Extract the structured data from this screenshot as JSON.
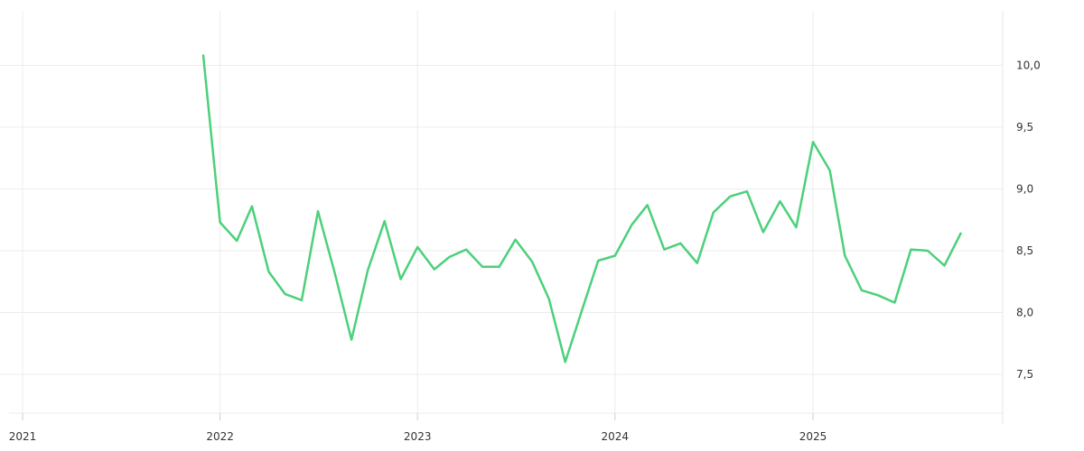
{
  "chart_data": {
    "type": "line",
    "title": "",
    "xlabel": "",
    "ylabel": "",
    "grid": true,
    "legend": "none",
    "xlim": [
      "2021-01-01",
      "2025-12-31"
    ],
    "ylim": [
      7.2,
      10.4
    ],
    "x_ticks": [
      {
        "date": "2021-01-01",
        "label": "2021"
      },
      {
        "date": "2022-01-01",
        "label": "2022"
      },
      {
        "date": "2023-01-01",
        "label": "2023"
      },
      {
        "date": "2024-01-01",
        "label": "2024"
      },
      {
        "date": "2025-01-01",
        "label": "2025"
      }
    ],
    "y_ticks": [
      {
        "value": 7.5,
        "label": "7,5"
      },
      {
        "value": 8.0,
        "label": "8,0"
      },
      {
        "value": 8.5,
        "label": "8,5"
      },
      {
        "value": 9.0,
        "label": "9,0"
      },
      {
        "value": 9.5,
        "label": "9,5"
      },
      {
        "value": 10.0,
        "label": "10,0"
      }
    ],
    "series": [
      {
        "color": "#4cd07a",
        "x": [
          "2021-12-01",
          "2022-01-01",
          "2022-02-01",
          "2022-03-01",
          "2022-04-01",
          "2022-05-01",
          "2022-06-01",
          "2022-07-01",
          "2022-08-01",
          "2022-09-01",
          "2022-10-01",
          "2022-11-01",
          "2022-12-01",
          "2023-01-01",
          "2023-02-01",
          "2023-03-01",
          "2023-04-01",
          "2023-05-01",
          "2023-06-01",
          "2023-07-01",
          "2023-08-01",
          "2023-09-01",
          "2023-10-01",
          "2023-11-01",
          "2023-12-01",
          "2024-01-01",
          "2024-02-01",
          "2024-03-01",
          "2024-04-01",
          "2024-05-01",
          "2024-06-01",
          "2024-07-01",
          "2024-08-01",
          "2024-09-01",
          "2024-10-01",
          "2024-11-01",
          "2024-12-01",
          "2025-01-01",
          "2025-02-01",
          "2025-03-01",
          "2025-04-01",
          "2025-05-01",
          "2025-06-01",
          "2025-07-01",
          "2025-08-01",
          "2025-09-01",
          "2025-10-01"
        ],
        "values": [
          10.08,
          8.73,
          8.58,
          8.86,
          8.33,
          8.15,
          8.1,
          8.82,
          8.32,
          7.78,
          8.34,
          8.74,
          8.27,
          8.53,
          8.35,
          8.45,
          8.51,
          8.37,
          8.37,
          8.59,
          8.41,
          8.11,
          7.6,
          8.02,
          8.42,
          8.46,
          8.71,
          8.87,
          8.51,
          8.56,
          8.4,
          8.81,
          8.94,
          8.98,
          8.65,
          8.9,
          8.69,
          9.38,
          9.15,
          8.46,
          8.18,
          8.14,
          8.08,
          8.51,
          8.5,
          8.38,
          8.64
        ]
      }
    ]
  }
}
